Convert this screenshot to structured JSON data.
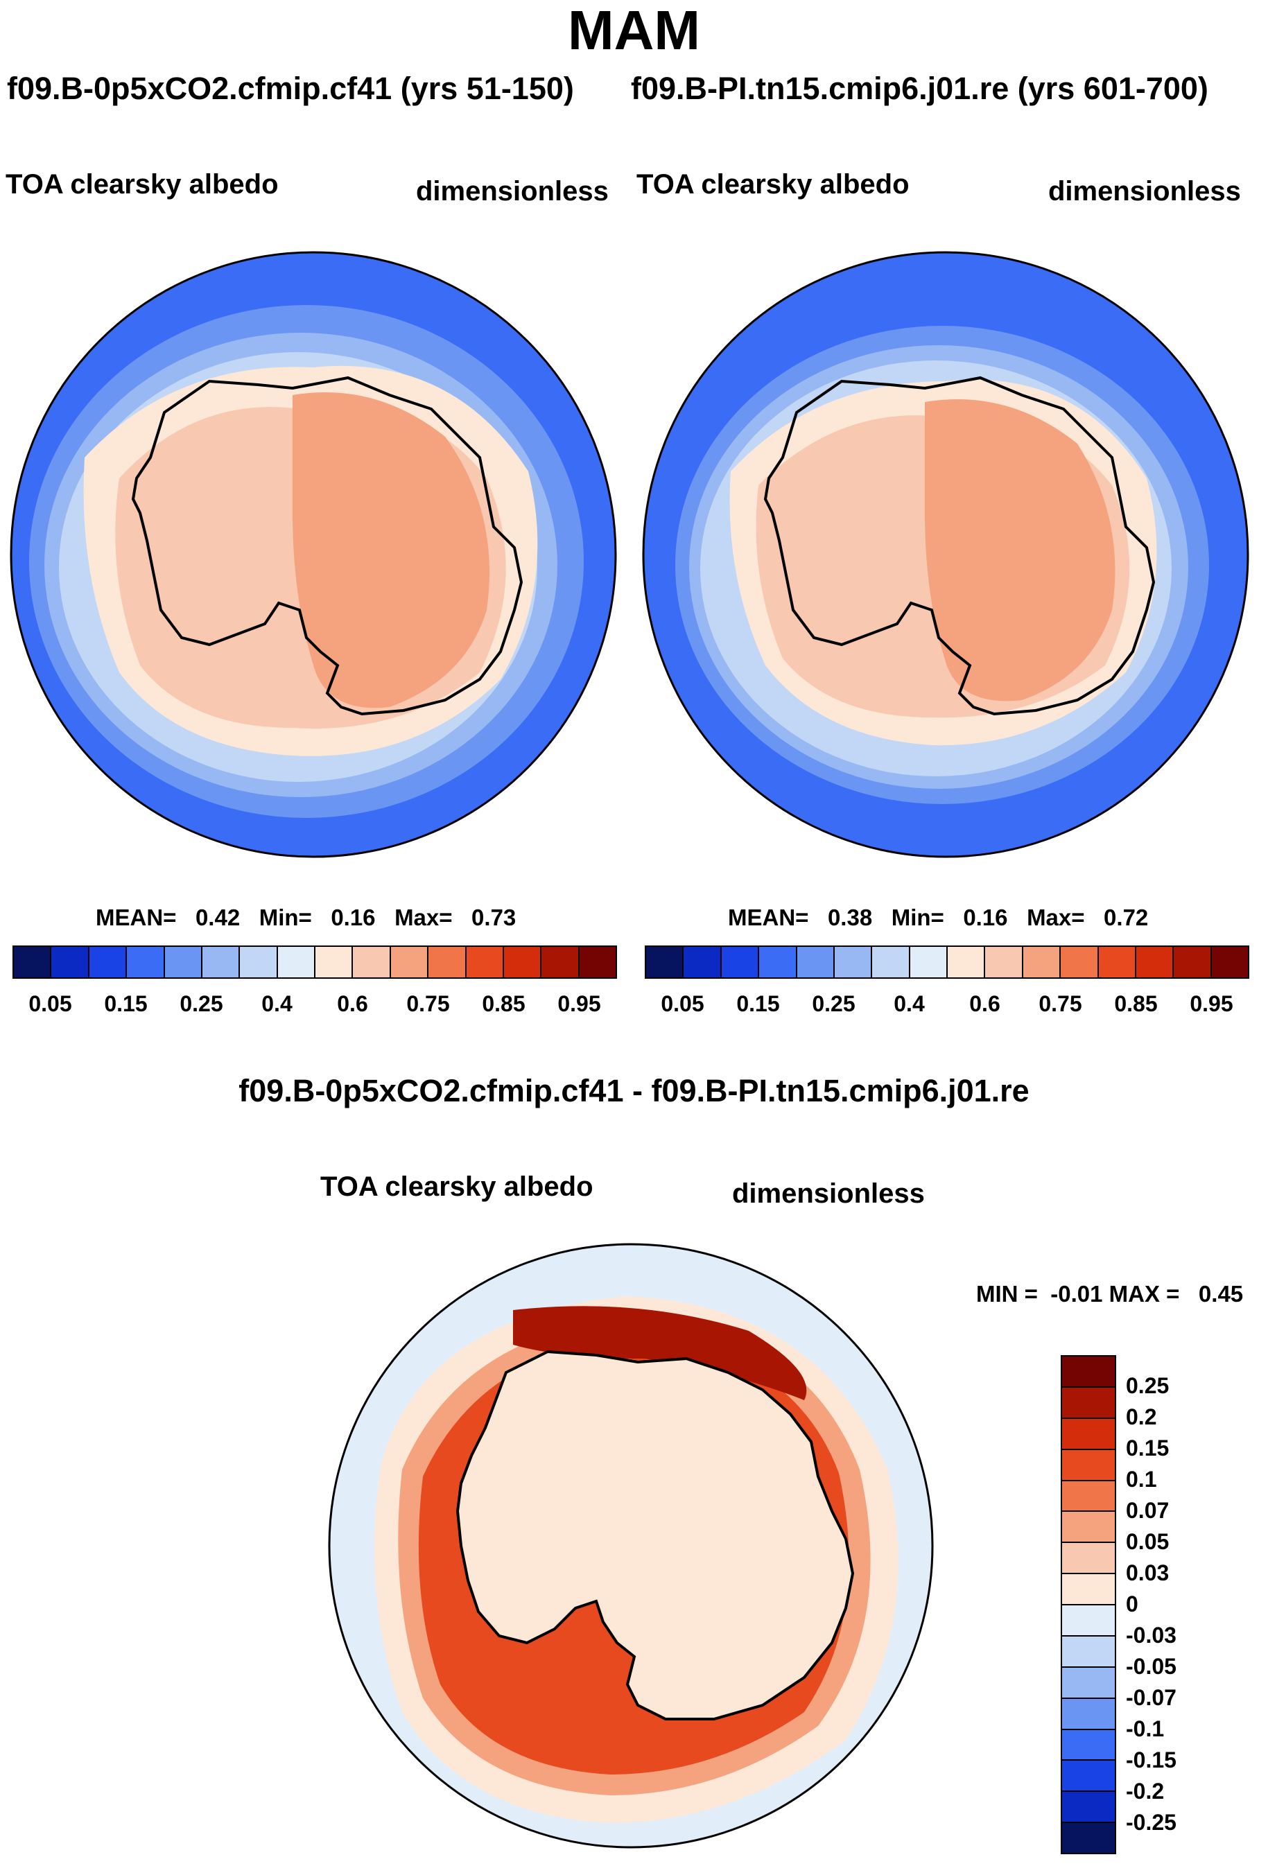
{
  "title": "MAM",
  "panel_left": {
    "case_title": "f09.B-0p5xCO2.cfmip.cf41 (yrs 51-150)",
    "variable": "TOA clearsky albedo",
    "units": "dimensionless",
    "mean_label": "MEAN=",
    "mean": "0.42",
    "min_label": "Min=",
    "min": "0.16",
    "max_label": "Max=",
    "max": "0.73"
  },
  "panel_right": {
    "case_title": "f09.B-PI.tn15.cmip6.j01.re (yrs 601-700)",
    "variable": "TOA clearsky albedo",
    "units": "dimensionless",
    "mean_label": "MEAN=",
    "mean": "0.38",
    "min_label": "Min=",
    "min": "0.16",
    "max_label": "Max=",
    "max": "0.72"
  },
  "panel_diff": {
    "case_title": "f09.B-0p5xCO2.cfmip.cf41 - f09.B-PI.tn15.cmip6.j01.re",
    "variable": "TOA clearsky albedo",
    "units": "dimensionless",
    "minmax": "MIN =  -0.01 MAX =   0.45"
  },
  "colorbar_abs": {
    "colors": [
      "#06135f",
      "#0a2ac3",
      "#1a43e6",
      "#3a6cf5",
      "#6a95f2",
      "#97b8f2",
      "#c2d7f5",
      "#e2edfa",
      "#fde8d8",
      "#f8c8b0",
      "#f4a37e",
      "#f0764a",
      "#e84a1f",
      "#d42d0b",
      "#a81503",
      "#730401"
    ],
    "ticks": [
      "0.05",
      "0.15",
      "0.25",
      "0.4",
      "0.6",
      "0.75",
      "0.85",
      "0.95"
    ]
  },
  "colorbar_diff": {
    "colors": [
      "#730401",
      "#a81503",
      "#d42d0b",
      "#e84a1f",
      "#f0764a",
      "#f4a37e",
      "#f8c8b0",
      "#fde8d8",
      "#e2edfa",
      "#c2d7f5",
      "#97b8f2",
      "#6a95f2",
      "#3a6cf5",
      "#1a43e6",
      "#0a2ac3",
      "#06135f"
    ],
    "ticks": [
      "0.25",
      "0.2",
      "0.15",
      "0.1",
      "0.07",
      "0.05",
      "0.03",
      "0",
      "-0.03",
      "-0.05",
      "-0.07",
      "-0.1",
      "-0.15",
      "-0.2",
      "-0.25"
    ]
  }
}
